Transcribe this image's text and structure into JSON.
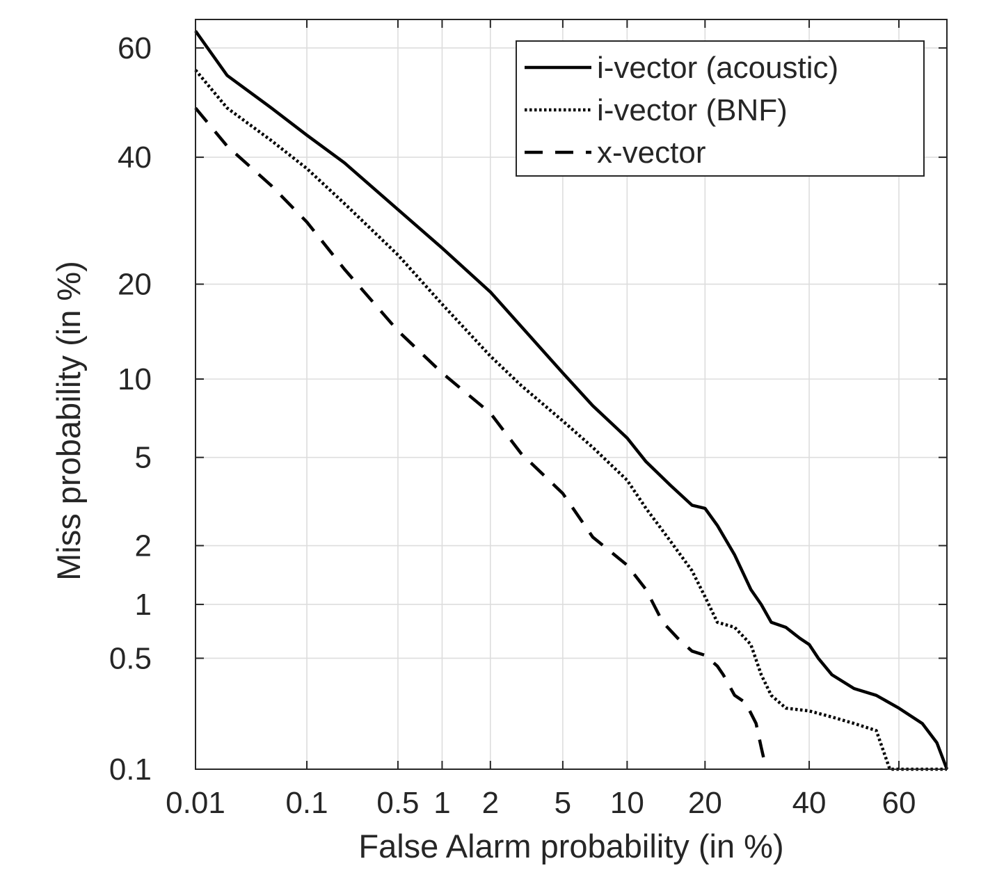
{
  "chart_data": {
    "type": "line",
    "title": "",
    "xlabel": "False Alarm probability (in %)",
    "ylabel": "Miss probability (in %)",
    "x_scale": "normal-deviate (probit)",
    "y_scale": "normal-deviate (probit)",
    "xlim": [
      0.01,
      70
    ],
    "ylim": [
      0.1,
      65
    ],
    "grid": true,
    "legend_position": "top-right",
    "x_ticks": [
      {
        "value": 0.01,
        "label": "0.01"
      },
      {
        "value": 0.1,
        "label": "0.1"
      },
      {
        "value": 0.5,
        "label": "0.5"
      },
      {
        "value": 1,
        "label": "1"
      },
      {
        "value": 2,
        "label": "2"
      },
      {
        "value": 5,
        "label": "5"
      },
      {
        "value": 10,
        "label": "10"
      },
      {
        "value": 20,
        "label": "20"
      },
      {
        "value": 40,
        "label": "40"
      },
      {
        "value": 60,
        "label": "60"
      }
    ],
    "y_ticks": [
      {
        "value": 0.1,
        "label": "0.1"
      },
      {
        "value": 0.5,
        "label": "0.5"
      },
      {
        "value": 1,
        "label": "1"
      },
      {
        "value": 2,
        "label": "2"
      },
      {
        "value": 5,
        "label": "5"
      },
      {
        "value": 10,
        "label": "10"
      },
      {
        "value": 20,
        "label": "20"
      },
      {
        "value": 40,
        "label": "40"
      },
      {
        "value": 60,
        "label": "60"
      }
    ],
    "series": [
      {
        "name": "i-vector (acoustic)",
        "style": "solid",
        "color": "#000000",
        "points": [
          [
            0.01,
            63
          ],
          [
            0.02,
            55
          ],
          [
            0.05,
            49
          ],
          [
            0.1,
            44
          ],
          [
            0.2,
            39
          ],
          [
            0.5,
            31
          ],
          [
            1,
            25
          ],
          [
            2,
            19
          ],
          [
            3,
            15
          ],
          [
            5,
            10.5
          ],
          [
            7,
            8
          ],
          [
            10,
            6
          ],
          [
            12,
            4.8
          ],
          [
            15,
            3.8
          ],
          [
            18,
            3.1
          ],
          [
            20,
            3.0
          ],
          [
            22,
            2.5
          ],
          [
            25,
            1.8
          ],
          [
            28,
            1.2
          ],
          [
            30,
            1.0
          ],
          [
            32,
            0.8
          ],
          [
            35,
            0.75
          ],
          [
            38,
            0.65
          ],
          [
            40,
            0.6
          ],
          [
            42,
            0.5
          ],
          [
            45,
            0.4
          ],
          [
            50,
            0.33
          ],
          [
            55,
            0.3
          ],
          [
            60,
            0.25
          ],
          [
            65,
            0.2
          ],
          [
            68,
            0.15
          ],
          [
            70,
            0.1
          ]
        ]
      },
      {
        "name": "i-vector (BNF)",
        "style": "dotted",
        "color": "#000000",
        "points": [
          [
            0.01,
            56
          ],
          [
            0.02,
            49
          ],
          [
            0.05,
            43
          ],
          [
            0.1,
            38
          ],
          [
            0.2,
            32
          ],
          [
            0.5,
            24
          ],
          [
            1,
            17.5
          ],
          [
            2,
            12
          ],
          [
            3,
            9.5
          ],
          [
            5,
            7
          ],
          [
            7,
            5.5
          ],
          [
            10,
            4
          ],
          [
            12,
            3.0
          ],
          [
            15,
            2.1
          ],
          [
            18,
            1.5
          ],
          [
            20,
            1.1
          ],
          [
            22,
            0.8
          ],
          [
            25,
            0.75
          ],
          [
            28,
            0.6
          ],
          [
            30,
            0.4
          ],
          [
            32,
            0.3
          ],
          [
            35,
            0.25
          ],
          [
            40,
            0.24
          ],
          [
            45,
            0.22
          ],
          [
            50,
            0.2
          ],
          [
            55,
            0.18
          ],
          [
            58,
            0.1
          ],
          [
            70,
            0.1
          ]
        ]
      },
      {
        "name": "x-vector",
        "style": "dashed",
        "color": "#000000",
        "points": [
          [
            0.01,
            49
          ],
          [
            0.02,
            42
          ],
          [
            0.05,
            35
          ],
          [
            0.1,
            29
          ],
          [
            0.2,
            22
          ],
          [
            0.5,
            14.5
          ],
          [
            1,
            10.5
          ],
          [
            2,
            7.5
          ],
          [
            3,
            5.2
          ],
          [
            5,
            3.5
          ],
          [
            7,
            2.2
          ],
          [
            10,
            1.6
          ],
          [
            12,
            1.2
          ],
          [
            14,
            0.8
          ],
          [
            16,
            0.65
          ],
          [
            18,
            0.55
          ],
          [
            20,
            0.52
          ],
          [
            22,
            0.45
          ],
          [
            23,
            0.4
          ],
          [
            25,
            0.3
          ],
          [
            27,
            0.27
          ],
          [
            29,
            0.2
          ],
          [
            30,
            0.14
          ],
          [
            31,
            0.1
          ]
        ]
      }
    ]
  }
}
